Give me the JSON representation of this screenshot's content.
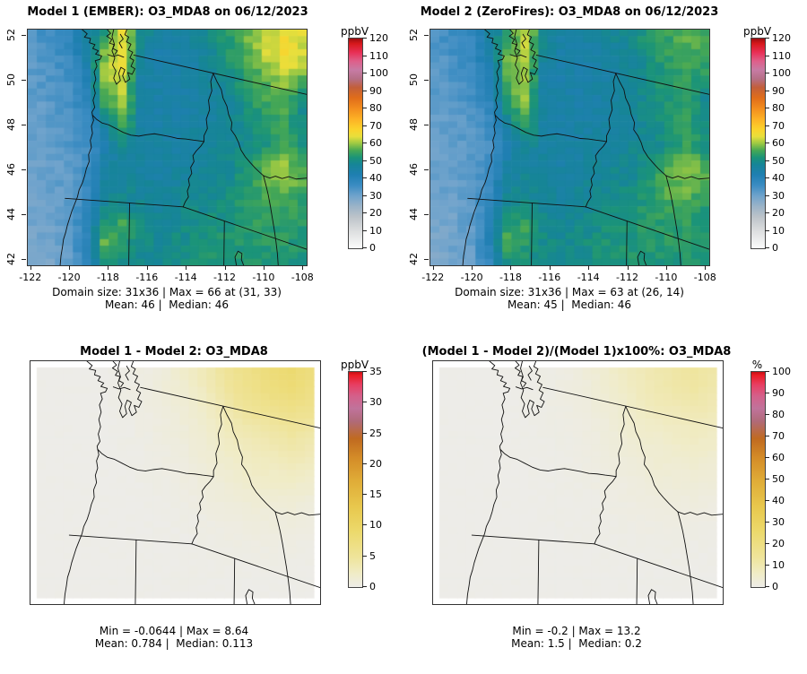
{
  "figure": {
    "kind": "R multi-panel model comparison figure",
    "background": "#ffffff"
  },
  "chart_data": [
    {
      "type": "heatmap",
      "title": "Model 1 (EMBER): O3_MDA8 on 06/12/2023",
      "stats1": "Domain size: 31x36 | Max = 66 at (31, 33)",
      "stats2": "Mean: 46 |  Median: 46",
      "xlabel": "",
      "ylabel": "",
      "xlim": [
        -122.2,
        -107.8
      ],
      "ylim": [
        42,
        52
      ],
      "axis": {
        "x_ticks": [
          -122,
          -120,
          -118,
          -116,
          -114,
          -112,
          -110,
          -108
        ],
        "y_ticks": [
          52,
          50,
          48,
          46,
          44,
          42
        ]
      },
      "colorbar": {
        "label": "ppbV",
        "min": 0,
        "max": 120,
        "ticks": [
          0,
          10,
          20,
          30,
          40,
          50,
          60,
          70,
          80,
          90,
          100,
          110,
          120
        ],
        "stops": [
          {
            "p": 0.0,
            "c": "#fbfbfb"
          },
          {
            "p": 0.083,
            "c": "#dcdedf"
          },
          {
            "p": 0.15,
            "c": "#bcc3c9"
          },
          {
            "p": 0.2,
            "c": "#9bb3c8"
          },
          {
            "p": 0.25,
            "c": "#6fa3cc"
          },
          {
            "p": 0.3,
            "c": "#3b8cc2"
          },
          {
            "p": 0.35,
            "c": "#1f7fb2"
          },
          {
            "p": 0.4,
            "c": "#168597"
          },
          {
            "p": 0.433,
            "c": "#1b9478"
          },
          {
            "p": 0.467,
            "c": "#47a854"
          },
          {
            "p": 0.5,
            "c": "#9cc943"
          },
          {
            "p": 0.533,
            "c": "#e8df3c"
          },
          {
            "p": 0.567,
            "c": "#fbd32c"
          },
          {
            "p": 0.617,
            "c": "#fdb125"
          },
          {
            "p": 0.667,
            "c": "#f28d1e"
          },
          {
            "p": 0.717,
            "c": "#e06d1a"
          },
          {
            "p": 0.767,
            "c": "#c25f3a"
          },
          {
            "p": 0.808,
            "c": "#b56f86"
          },
          {
            "p": 0.85,
            "c": "#c77ba4"
          },
          {
            "p": 0.892,
            "c": "#de5f8a"
          },
          {
            "p": 0.933,
            "c": "#e83057"
          },
          {
            "p": 0.975,
            "c": "#d7191c"
          },
          {
            "p": 1.0,
            "c": "#9e0d10"
          }
        ]
      },
      "grid_shape": [
        31,
        36
      ],
      "values": [
        [
          34,
          36,
          38,
          46,
          52,
          64,
          50,
          45,
          45,
          47,
          50,
          54,
          58,
          62,
          65,
          63
        ],
        [
          33,
          35,
          37,
          44,
          58,
          65,
          48,
          44,
          44,
          46,
          49,
          53,
          57,
          62,
          66,
          63
        ],
        [
          32,
          34,
          36,
          42,
          60,
          63,
          46,
          44,
          44,
          45,
          47,
          51,
          55,
          58,
          62,
          61
        ],
        [
          32,
          33,
          35,
          40,
          57,
          62,
          45,
          44,
          44,
          45,
          47,
          49,
          53,
          56,
          58,
          52
        ],
        [
          31,
          32,
          34,
          38,
          52,
          60,
          46,
          44,
          44,
          45,
          46,
          48,
          52,
          54,
          56,
          50
        ],
        [
          31,
          32,
          33,
          36,
          46,
          55,
          46,
          45,
          45,
          46,
          47,
          48,
          50,
          53,
          55,
          50
        ],
        [
          30,
          31,
          33,
          35,
          42,
          48,
          46,
          45,
          45,
          46,
          47,
          48,
          50,
          52,
          56,
          52
        ],
        [
          30,
          31,
          32,
          36,
          45,
          47,
          46,
          45,
          46,
          47,
          48,
          49,
          52,
          58,
          60,
          55
        ],
        [
          30,
          31,
          32,
          37,
          47,
          48,
          47,
          46,
          47,
          48,
          49,
          50,
          53,
          57,
          58,
          57
        ],
        [
          29,
          30,
          32,
          38,
          48,
          50,
          48,
          47,
          48,
          49,
          50,
          51,
          53,
          55,
          55,
          53
        ],
        [
          29,
          30,
          32,
          40,
          52,
          55,
          50,
          48,
          49,
          50,
          51,
          52,
          53,
          54,
          54,
          53
        ],
        [
          28,
          30,
          31,
          40,
          57,
          53,
          50,
          49,
          50,
          51,
          52,
          52,
          53,
          53,
          53,
          52
        ],
        [
          28,
          29,
          31,
          38,
          50,
          51,
          49,
          49,
          50,
          51,
          52,
          52,
          52,
          52,
          52,
          52
        ]
      ]
    },
    {
      "type": "heatmap",
      "title": "Model 2 (ZeroFires): O3_MDA8 on 06/12/2023",
      "stats1": "Domain size: 31x36 | Max = 63 at (26, 14)",
      "stats2": "Mean: 45 |  Median: 46",
      "xlabel": "",
      "ylabel": "",
      "xlim": [
        -122.2,
        -107.8
      ],
      "ylim": [
        42,
        52
      ],
      "axis": {
        "x_ticks": [
          -122,
          -120,
          -118,
          -116,
          -114,
          -112,
          -110,
          -108
        ],
        "y_ticks": [
          52,
          50,
          48,
          46,
          44,
          42
        ]
      },
      "colorbar": {
        "label": "ppbV",
        "min": 0,
        "max": 120,
        "ticks": [
          0,
          10,
          20,
          30,
          40,
          50,
          60,
          70,
          80,
          90,
          100,
          110,
          120
        ],
        "stops": "same-as-0"
      },
      "grid_shape": [
        31,
        36
      ],
      "values": [
        [
          34,
          36,
          38,
          46,
          52,
          62,
          50,
          45,
          45,
          46,
          48,
          50,
          53,
          55,
          57,
          56
        ],
        [
          33,
          35,
          37,
          44,
          56,
          62,
          48,
          44,
          44,
          45,
          47,
          49,
          52,
          54,
          56,
          55
        ],
        [
          32,
          34,
          36,
          42,
          58,
          61,
          46,
          44,
          44,
          45,
          46,
          48,
          51,
          53,
          55,
          54
        ],
        [
          32,
          33,
          35,
          40,
          55,
          60,
          45,
          44,
          44,
          45,
          46,
          48,
          51,
          53,
          54,
          50
        ],
        [
          31,
          32,
          34,
          38,
          51,
          58,
          46,
          44,
          44,
          45,
          46,
          47,
          50,
          52,
          54,
          49
        ],
        [
          31,
          32,
          33,
          36,
          45,
          54,
          46,
          45,
          45,
          46,
          46,
          47,
          49,
          52,
          54,
          50
        ],
        [
          30,
          31,
          33,
          35,
          42,
          48,
          46,
          45,
          45,
          46,
          47,
          48,
          49,
          51,
          55,
          52
        ],
        [
          30,
          31,
          32,
          36,
          45,
          47,
          46,
          45,
          46,
          47,
          48,
          49,
          51,
          57,
          60,
          55
        ],
        [
          30,
          31,
          32,
          37,
          47,
          48,
          47,
          46,
          47,
          48,
          49,
          50,
          53,
          57,
          58,
          57
        ],
        [
          29,
          30,
          32,
          38,
          48,
          50,
          48,
          47,
          48,
          49,
          50,
          51,
          53,
          55,
          55,
          53
        ],
        [
          29,
          30,
          32,
          40,
          52,
          55,
          50,
          48,
          49,
          50,
          51,
          52,
          53,
          54,
          54,
          53
        ],
        [
          28,
          30,
          31,
          40,
          57,
          53,
          50,
          49,
          50,
          51,
          52,
          52,
          53,
          53,
          53,
          52
        ],
        [
          28,
          29,
          31,
          38,
          50,
          51,
          49,
          49,
          50,
          51,
          52,
          52,
          52,
          52,
          52,
          52
        ]
      ]
    },
    {
      "type": "heatmap",
      "title": "Model 1 - Model 2: O3_MDA8",
      "stats1": "Min = -0.0644 | Max = 8.64",
      "stats2": "Mean: 0.784 |  Median: 0.113",
      "xlabel": "",
      "ylabel": "",
      "xlim": [
        -122.2,
        -107.8
      ],
      "ylim": [
        42,
        52
      ],
      "colorbar": {
        "label": "ppbV",
        "min": 0,
        "max": 35,
        "ticks": [
          0,
          5,
          10,
          15,
          20,
          25,
          30,
          35
        ],
        "stops": [
          {
            "p": 0.0,
            "c": "#edece8"
          },
          {
            "p": 0.06,
            "c": "#f0ecc8"
          },
          {
            "p": 0.14,
            "c": "#efe49a"
          },
          {
            "p": 0.26,
            "c": "#ecd96b"
          },
          {
            "p": 0.37,
            "c": "#e8c84e"
          },
          {
            "p": 0.49,
            "c": "#e0ad38"
          },
          {
            "p": 0.6,
            "c": "#d48c28"
          },
          {
            "p": 0.69,
            "c": "#c06a20"
          },
          {
            "p": 0.77,
            "c": "#b06a78"
          },
          {
            "p": 0.83,
            "c": "#c0739b"
          },
          {
            "p": 0.89,
            "c": "#d55f89"
          },
          {
            "p": 0.94,
            "c": "#e73f63"
          },
          {
            "p": 0.985,
            "c": "#ea1c24"
          },
          {
            "p": 1.0,
            "c": "#c40f14"
          }
        ]
      },
      "grid_shape": [
        31,
        36
      ],
      "values": [
        [
          0,
          0,
          0,
          0,
          0.2,
          0.3,
          0.5,
          1,
          2,
          3,
          4.5,
          6,
          7,
          8,
          8.6,
          7.5
        ],
        [
          0,
          0,
          0,
          0,
          0.2,
          0.3,
          0.5,
          1,
          1.5,
          2.5,
          4,
          5.5,
          6.5,
          7.5,
          8,
          7
        ],
        [
          0,
          0,
          0,
          0,
          0.1,
          0.3,
          0.5,
          0.8,
          1.2,
          2,
          3,
          4.5,
          5.5,
          6,
          6.5,
          6
        ],
        [
          0,
          0,
          0,
          0,
          0.1,
          0.2,
          0.4,
          0.7,
          1,
          1.5,
          2.5,
          3.5,
          4,
          4.5,
          5,
          4.5
        ],
        [
          0,
          0,
          0,
          0,
          0.1,
          0.2,
          0.3,
          0.5,
          0.8,
          1.2,
          2,
          2.5,
          3,
          3.5,
          4,
          3.5
        ],
        [
          0,
          0,
          0,
          0,
          0,
          0.1,
          0.2,
          0.4,
          0.6,
          1,
          1.5,
          2,
          2.5,
          2.5,
          3,
          2.5
        ],
        [
          0,
          0,
          0,
          0,
          0,
          0.1,
          0.2,
          0.3,
          0.5,
          0.8,
          1,
          1.5,
          2,
          2,
          2,
          1.8
        ],
        [
          0,
          0,
          0,
          0,
          0,
          0,
          0.1,
          0.2,
          0.3,
          0.5,
          0.8,
          1,
          1.2,
          1.2,
          1.2,
          1
        ],
        [
          0,
          0,
          0,
          0,
          0,
          0,
          0.1,
          0.1,
          0.2,
          0.3,
          0.5,
          0.6,
          0.8,
          0.8,
          0.8,
          0.6
        ],
        [
          0,
          0,
          0,
          0,
          0,
          0,
          0,
          0.1,
          0.1,
          0.2,
          0.3,
          0.4,
          0.5,
          0.5,
          0.4,
          0.3
        ],
        [
          0,
          0,
          0,
          0,
          0,
          0,
          0,
          0,
          0.1,
          0.1,
          0.2,
          0.2,
          0.3,
          0.3,
          0.2,
          0.2
        ],
        [
          0,
          0,
          0,
          0,
          0,
          0,
          0,
          0,
          0.1,
          0.1,
          0.1,
          0.1,
          0.1,
          0.1,
          0.1,
          0.1
        ],
        [
          0,
          0,
          0,
          0,
          0,
          0,
          0,
          0,
          0,
          0,
          0,
          0,
          0,
          0,
          0,
          0
        ]
      ]
    },
    {
      "type": "heatmap",
      "title": "(Model 1 - Model 2)/(Model 1)x100%: O3_MDA8",
      "stats1": "Min = -0.2 | Max = 13.2",
      "stats2": "Mean: 1.5 |  Median: 0.2",
      "xlabel": "",
      "ylabel": "",
      "xlim": [
        -122.2,
        -107.8
      ],
      "ylim": [
        42,
        52
      ],
      "colorbar": {
        "label": "%",
        "min": 0,
        "max": 100,
        "ticks": [
          0,
          10,
          20,
          30,
          40,
          50,
          60,
          70,
          80,
          90,
          100
        ],
        "stops": "same-as-2"
      },
      "grid_shape": [
        31,
        36
      ],
      "values": [
        [
          0,
          0,
          0,
          0,
          0.3,
          0.5,
          0.8,
          1.5,
          3,
          4.5,
          7,
          9,
          10.5,
          12,
          13.2,
          11.5
        ],
        [
          0,
          0,
          0,
          0,
          0.3,
          0.5,
          0.8,
          1.5,
          2.3,
          4,
          6,
          8,
          10,
          11.5,
          12.3,
          10.8
        ],
        [
          0,
          0,
          0,
          0,
          0.2,
          0.5,
          0.8,
          1.2,
          2,
          3,
          4.5,
          7,
          8.5,
          9,
          10,
          9.2
        ],
        [
          0,
          0,
          0,
          0,
          0.2,
          0.3,
          0.6,
          1,
          1.5,
          2.3,
          4,
          5.5,
          6,
          7,
          7.7,
          7
        ],
        [
          0,
          0,
          0,
          0,
          0.2,
          0.3,
          0.5,
          0.8,
          1.2,
          2,
          3,
          4,
          4.5,
          5.5,
          6,
          5.5
        ],
        [
          0,
          0,
          0,
          0,
          0,
          0.2,
          0.3,
          0.6,
          1,
          1.5,
          2.3,
          3,
          4,
          4,
          4.5,
          4
        ],
        [
          0,
          0,
          0,
          0,
          0,
          0.2,
          0.3,
          0.5,
          0.8,
          1.2,
          1.5,
          2.3,
          3,
          3,
          3,
          2.8
        ],
        [
          0,
          0,
          0,
          0,
          0,
          0,
          0.2,
          0.3,
          0.5,
          0.8,
          1.2,
          1.5,
          2,
          2,
          2,
          1.5
        ],
        [
          0,
          0,
          0,
          0,
          0,
          0,
          0.2,
          0.2,
          0.3,
          0.5,
          0.8,
          1,
          1.2,
          1.2,
          1.2,
          1
        ],
        [
          0,
          0,
          0,
          0,
          0,
          0,
          0,
          0.2,
          0.2,
          0.3,
          0.5,
          0.6,
          0.8,
          0.8,
          0.6,
          0.5
        ],
        [
          0,
          0,
          0,
          0,
          0,
          0,
          0,
          0,
          0.2,
          0.2,
          0.3,
          0.3,
          0.5,
          0.5,
          0.3,
          0.3
        ],
        [
          0,
          0,
          0,
          0,
          0,
          0,
          0,
          0,
          0.1,
          0.1,
          0.2,
          0.2,
          0.2,
          0.2,
          0.2,
          0.1
        ],
        [
          0,
          0,
          0,
          0,
          0,
          0,
          0,
          0,
          0,
          0,
          0,
          0,
          0,
          0,
          0,
          0
        ]
      ]
    }
  ]
}
